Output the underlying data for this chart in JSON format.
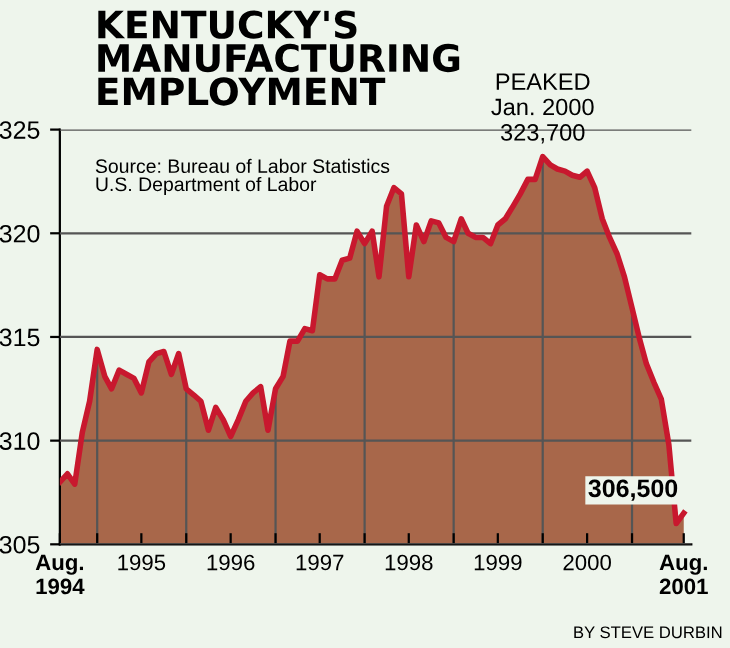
{
  "chart_data": {
    "type": "area",
    "title": "KENTUCKY'S\nMANUFACTURING\nEMPLOYMENT",
    "x": [
      "1994-08",
      "1994-09",
      "1994-10",
      "1994-11",
      "1994-12",
      "1995-01",
      "1995-02",
      "1995-03",
      "1995-04",
      "1995-05",
      "1995-06",
      "1995-07",
      "1995-08",
      "1995-09",
      "1995-10",
      "1995-11",
      "1995-12",
      "1996-01",
      "1996-02",
      "1996-03",
      "1996-04",
      "1996-05",
      "1996-06",
      "1996-07",
      "1996-08",
      "1996-09",
      "1996-10",
      "1996-11",
      "1996-12",
      "1997-01",
      "1997-02",
      "1997-03",
      "1997-04",
      "1997-05",
      "1997-06",
      "1997-07",
      "1997-08",
      "1997-09",
      "1997-10",
      "1997-11",
      "1997-12",
      "1998-01",
      "1998-02",
      "1998-03",
      "1998-04",
      "1998-05",
      "1998-06",
      "1998-07",
      "1998-08",
      "1998-09",
      "1998-10",
      "1998-11",
      "1998-12",
      "1999-01",
      "1999-02",
      "1999-03",
      "1999-04",
      "1999-05",
      "1999-06",
      "1999-07",
      "1999-08",
      "1999-09",
      "1999-10",
      "1999-11",
      "1999-12",
      "2000-01",
      "2000-02",
      "2000-03",
      "2000-04",
      "2000-05",
      "2000-06",
      "2000-07",
      "2000-08",
      "2000-09",
      "2000-10",
      "2000-11",
      "2000-12",
      "2001-01",
      "2001-02",
      "2001-03",
      "2001-04",
      "2001-05",
      "2001-06",
      "2001-07",
      "2001-08"
    ],
    "series": [
      {
        "color": "#c8182e",
        "values": [
          308.0,
          308.4,
          307.9,
          310.4,
          311.9,
          314.4,
          313.1,
          312.5,
          313.4,
          313.2,
          313.0,
          312.3,
          313.8,
          314.2,
          314.3,
          313.2,
          314.2,
          312.5,
          312.2,
          311.9,
          310.5,
          311.6,
          311.0,
          310.2,
          311.0,
          311.9,
          312.3,
          312.6,
          310.5,
          312.5,
          313.1,
          314.8,
          314.8,
          315.4,
          315.3,
          318.0,
          317.8,
          317.8,
          318.7,
          318.8,
          320.1,
          319.5,
          320.1,
          317.9,
          321.3,
          322.2,
          321.9,
          317.9,
          320.4,
          319.6,
          320.6,
          320.5,
          319.8,
          319.6,
          320.7,
          320.0,
          319.8,
          319.8,
          319.5,
          320.4,
          320.7,
          321.3,
          321.9,
          322.6,
          322.6,
          323.7,
          323.3,
          323.1,
          323.0,
          322.8,
          322.7,
          323.0,
          322.2,
          320.7,
          319.8,
          319.0,
          317.9,
          316.4,
          314.9,
          313.7,
          312.8,
          312.0,
          309.8,
          306.0,
          306.5
        ]
      }
    ],
    "xlim": [
      "1994-08",
      "2001-09"
    ],
    "xticks": [
      {
        "value": "1994-08",
        "label": "Aug.\n1994"
      },
      {
        "value": "1995-01",
        "label": null
      },
      {
        "value": "1995-07",
        "label": "1995"
      },
      {
        "value": "1996-01",
        "label": null
      },
      {
        "value": "1996-07",
        "label": "1996"
      },
      {
        "value": "1997-01",
        "label": null
      },
      {
        "value": "1997-07",
        "label": "1997"
      },
      {
        "value": "1998-01",
        "label": null
      },
      {
        "value": "1998-07",
        "label": "1998"
      },
      {
        "value": "1999-01",
        "label": null
      },
      {
        "value": "1999-07",
        "label": "1999"
      },
      {
        "value": "2000-01",
        "label": null
      },
      {
        "value": "2000-07",
        "label": "2000"
      },
      {
        "value": "2001-01",
        "label": null
      },
      {
        "value": "2001-08",
        "label": "Aug.\n2001"
      }
    ],
    "ylim": [
      305,
      325
    ],
    "yticks": [
      305,
      310,
      315,
      320,
      325
    ],
    "grid": true,
    "annotations": [
      {
        "text": "PEAKED\nJan. 2000\n323,700",
        "x": "2000-01",
        "y": 323.7
      },
      {
        "text": "306,500",
        "x": "2001-08",
        "y": 306.5
      },
      "Source: Bureau of Labor Statistics\nU.S. Department of Labor",
      "BY STEVE DURBIN"
    ]
  }
}
